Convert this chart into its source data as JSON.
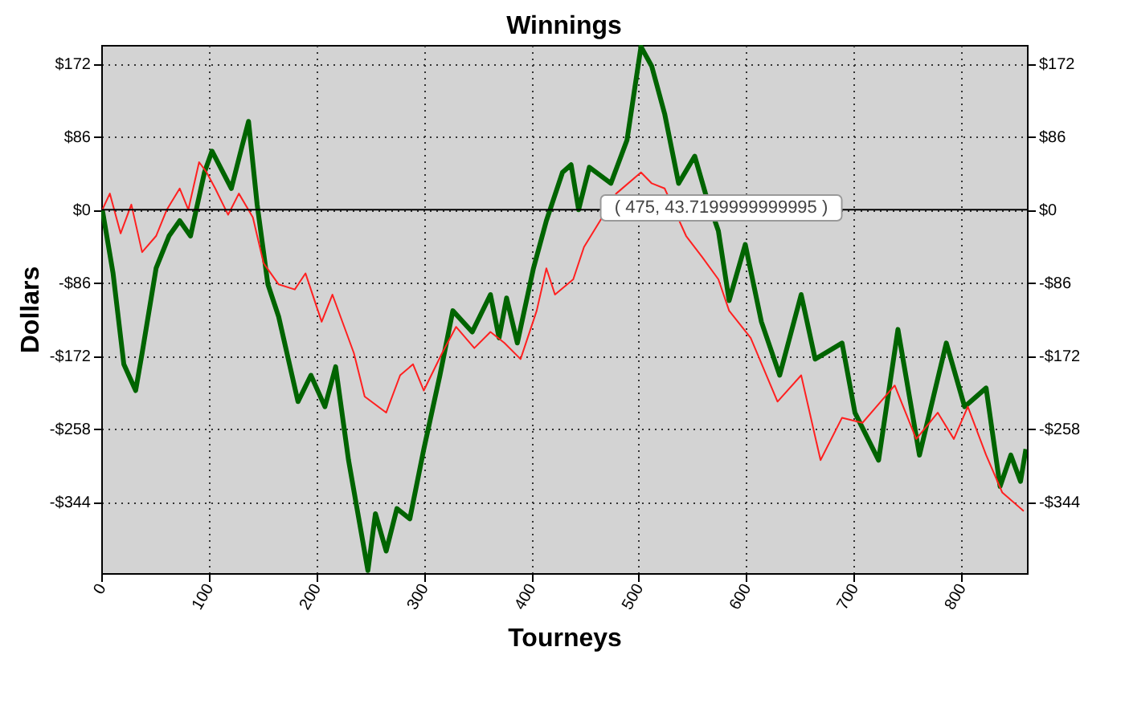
{
  "chart_data": {
    "type": "line",
    "title": "Winnings",
    "xlabel": "Tourneys",
    "ylabel": "Dollars",
    "xlim": [
      0,
      861
    ],
    "xticks": [
      0,
      100,
      200,
      300,
      400,
      500,
      600,
      700,
      800
    ],
    "ylim": [
      -428,
      194
    ],
    "yticks": [
      {
        "value": 172,
        "label": "$172"
      },
      {
        "value": 86,
        "label": "$86"
      },
      {
        "value": 0,
        "label": "$0"
      },
      {
        "value": -86,
        "label": "-$86"
      },
      {
        "value": -172,
        "label": "-$172"
      },
      {
        "value": -258,
        "label": "-$258"
      },
      {
        "value": -344,
        "label": "-$344"
      }
    ],
    "y2lim": [
      -428,
      194
    ],
    "y2ticks": [
      {
        "value": 172,
        "label": "$172"
      },
      {
        "value": 86,
        "label": "$86"
      },
      {
        "value": 0,
        "label": "$0"
      },
      {
        "value": -86,
        "label": "-$86"
      },
      {
        "value": -172,
        "label": "-$172"
      },
      {
        "value": -258,
        "label": "-$258"
      },
      {
        "value": -344,
        "label": "-$344"
      }
    ],
    "grid": true,
    "marker": "none",
    "line_style": "solid",
    "ref_lines": [
      {
        "axis": "y",
        "value": 0,
        "color": "#000000",
        "line_style": "solid"
      }
    ],
    "annotations": [
      {
        "text": "( 475, 43.7199999999995 )",
        "x": 475,
        "y": 43.72
      }
    ],
    "series": [
      {
        "color": "#006400",
        "x": [
          1,
          11,
          21,
          32,
          38,
          51,
          63,
          73,
          83,
          96,
          103,
          121,
          131,
          137,
          145,
          155,
          165,
          183,
          195,
          208,
          218,
          230,
          248,
          255,
          265,
          275,
          287,
          300,
          315,
          327,
          345,
          362,
          370,
          377,
          387,
          402,
          414,
          429,
          437,
          444,
          454,
          474,
          489,
          502,
          512,
          524,
          537,
          552,
          562,
          574,
          584,
          599,
          614,
          631,
          651,
          664,
          689,
          701,
          723,
          741,
          761,
          786,
          803,
          823,
          836,
          846,
          855,
          860
        ],
        "values": [
          0,
          -75,
          -182,
          -213,
          -169,
          -69,
          -31,
          -13,
          -31,
          44,
          69,
          25,
          75,
          104,
          6,
          -88,
          -126,
          -226,
          -195,
          -232,
          -185,
          -295,
          -425,
          -358,
          -402,
          -352,
          -364,
          -282,
          -195,
          -119,
          -144,
          -100,
          -151,
          -104,
          -157,
          -69,
          -13,
          44,
          53,
          0,
          50,
          31,
          82,
          192,
          169,
          113,
          31,
          63,
          19,
          -25,
          -107,
          -41,
          -132,
          -195,
          -100,
          -176,
          -157,
          -239,
          -295,
          -141,
          -289,
          -157,
          -232,
          -210,
          -326,
          -289,
          -320,
          -282
        ]
      },
      {
        "color": "#ff2020",
        "x": [
          1,
          8,
          18,
          28,
          38,
          51,
          61,
          73,
          81,
          91,
          98,
          106,
          118,
          128,
          141,
          151,
          165,
          180,
          190,
          205,
          215,
          235,
          245,
          265,
          278,
          290,
          300,
          317,
          330,
          347,
          362,
          375,
          390,
          405,
          414,
          422,
          439,
          449,
          464,
          479,
          502,
          512,
          524,
          544,
          559,
          574,
          584,
          604,
          629,
          651,
          669,
          689,
          708,
          738,
          758,
          778,
          793,
          806,
          823,
          838,
          858
        ],
        "values": [
          0,
          19,
          -28,
          6,
          -50,
          -31,
          0,
          25,
          0,
          56,
          44,
          25,
          -6,
          19,
          -9,
          -63,
          -88,
          -94,
          -75,
          -132,
          -100,
          -169,
          -220,
          -239,
          -195,
          -182,
          -213,
          -169,
          -138,
          -163,
          -144,
          -157,
          -176,
          -119,
          -69,
          -100,
          -82,
          -44,
          -13,
          19,
          44,
          31,
          25,
          -31,
          -56,
          -82,
          -119,
          -151,
          -226,
          -195,
          -295,
          -245,
          -251,
          -207,
          -270,
          -239,
          -270,
          -232,
          -289,
          -333,
          -355
        ]
      }
    ]
  }
}
